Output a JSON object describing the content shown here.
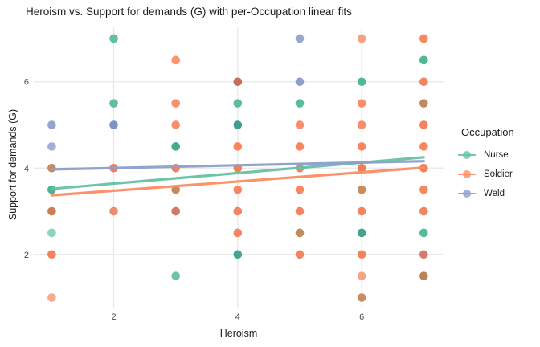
{
  "title": "Heroism vs. Support for demands (G) with per-Occupation linear fits",
  "axes": {
    "x": {
      "label": "Heroism",
      "ticks": [
        "2",
        "4",
        "6"
      ]
    },
    "y": {
      "label": "Support for demands (G)",
      "ticks": [
        "2",
        "4",
        "6"
      ]
    }
  },
  "legend": {
    "title": "Occupation",
    "items": [
      {
        "label": "Nurse",
        "color": "#66C2A5"
      },
      {
        "label": "Soldier",
        "color": "#FC8D62"
      },
      {
        "label": "Weld",
        "color": "#8DA0CB"
      }
    ]
  },
  "colors": {
    "background": "#ffffff",
    "grid": "#e8e8e8",
    "tick_label": "#4d4d4d",
    "text": "#1a1a1a"
  },
  "chart_data": {
    "type": "scatter",
    "title": "Heroism vs. Support for demands (G) with per-Occupation linear fits",
    "xlabel": "Heroism",
    "ylabel": "Support for demands (G)",
    "xlim": [
      0.71,
      7.32
    ],
    "ylim": [
      0.75,
      7.26
    ],
    "x_ticks": [
      2,
      4,
      6
    ],
    "y_ticks": [
      2,
      4,
      6
    ],
    "grid": "major only, light gray on white",
    "legend_position": "right",
    "color_legend": "green hues = Nurse, orange/salmon hues = Soldier, blue hues = Weld; brown/teal/dark-red dots are alpha-blended overlaps of multiple occupations at the same (x,y)",
    "points": [
      {
        "x": 1,
        "y": 5,
        "color": "#94a5cf"
      },
      {
        "x": 1,
        "y": 4.5,
        "color": "#a3b0d6"
      },
      {
        "x": 1,
        "y": 4,
        "color": "#c98a5e"
      },
      {
        "x": 1,
        "y": 3.5,
        "color": "#4fb392"
      },
      {
        "x": 1,
        "y": 3,
        "color": "#c98057"
      },
      {
        "x": 1,
        "y": 2.5,
        "color": "#8fd3b8"
      },
      {
        "x": 1,
        "y": 2,
        "color": "#f4805d"
      },
      {
        "x": 1,
        "y": 1,
        "color": "#f9a98c"
      },
      {
        "x": 2,
        "y": 7,
        "color": "#62c09e"
      },
      {
        "x": 2,
        "y": 5.5,
        "color": "#62be9d"
      },
      {
        "x": 2,
        "y": 5,
        "color": "#7d93c4"
      },
      {
        "x": 2,
        "y": 4,
        "color": "#f0805b"
      },
      {
        "x": 2,
        "y": 3,
        "color": "#e98f70"
      },
      {
        "x": 3,
        "y": 6.5,
        "color": "#fb9471"
      },
      {
        "x": 3,
        "y": 5.5,
        "color": "#fa8f6d"
      },
      {
        "x": 3,
        "y": 5,
        "color": "#f98e6c"
      },
      {
        "x": 3,
        "y": 4.5,
        "color": "#49a88e"
      },
      {
        "x": 3,
        "y": 4,
        "color": "#f2835e"
      },
      {
        "x": 3,
        "y": 3.5,
        "color": "#c08a5e"
      },
      {
        "x": 3,
        "y": 3,
        "color": "#d47767"
      },
      {
        "x": 3,
        "y": 1.5,
        "color": "#6cc4a3"
      },
      {
        "x": 4,
        "y": 6,
        "color": "#c96a5c"
      },
      {
        "x": 4,
        "y": 5.5,
        "color": "#5ebd9c"
      },
      {
        "x": 4,
        "y": 5,
        "color": "#3f9e8b"
      },
      {
        "x": 4,
        "y": 4.5,
        "color": "#f8875f"
      },
      {
        "x": 4,
        "y": 4,
        "color": "#f07f52"
      },
      {
        "x": 4,
        "y": 3.5,
        "color": "#f8875f"
      },
      {
        "x": 4,
        "y": 3,
        "color": "#f28560"
      },
      {
        "x": 4,
        "y": 2.5,
        "color": "#f38562"
      },
      {
        "x": 4,
        "y": 2,
        "color": "#44a491"
      },
      {
        "x": 5,
        "y": 7,
        "color": "#97a7d0"
      },
      {
        "x": 5,
        "y": 6,
        "color": "#8ca0cb"
      },
      {
        "x": 5,
        "y": 5.5,
        "color": "#5abd9a"
      },
      {
        "x": 5,
        "y": 5,
        "color": "#fa8e6c"
      },
      {
        "x": 5,
        "y": 4.5,
        "color": "#f8875f"
      },
      {
        "x": 5,
        "y": 4,
        "color": "#f4805c"
      },
      {
        "x": 5,
        "y": 3.5,
        "color": "#f8875f"
      },
      {
        "x": 5,
        "y": 3,
        "color": "#f28560"
      },
      {
        "x": 5,
        "y": 2.5,
        "color": "#c28a5d"
      },
      {
        "x": 5,
        "y": 2,
        "color": "#f4835f"
      },
      {
        "x": 6,
        "y": 7,
        "color": "#fa9f80"
      },
      {
        "x": 6,
        "y": 6,
        "color": "#52b795"
      },
      {
        "x": 6,
        "y": 5.5,
        "color": "#f98e6c"
      },
      {
        "x": 6,
        "y": 5,
        "color": "#f98e6c"
      },
      {
        "x": 6,
        "y": 4.5,
        "color": "#f8875f"
      },
      {
        "x": 6,
        "y": 4,
        "color": "#f07e57"
      },
      {
        "x": 6,
        "y": 3.5,
        "color": "#c68c5c"
      },
      {
        "x": 6,
        "y": 3,
        "color": "#f28560"
      },
      {
        "x": 6,
        "y": 2.5,
        "color": "#43a390"
      },
      {
        "x": 6,
        "y": 2,
        "color": "#f4835f"
      },
      {
        "x": 6,
        "y": 1.5,
        "color": "#f9a386"
      },
      {
        "x": 6,
        "y": 1,
        "color": "#ce8a60"
      },
      {
        "x": 7,
        "y": 7,
        "color": "#f68963"
      },
      {
        "x": 7,
        "y": 6.5,
        "color": "#4fb795"
      },
      {
        "x": 7,
        "y": 6,
        "color": "#f2845f"
      },
      {
        "x": 7,
        "y": 5.5,
        "color": "#bf8a5f"
      },
      {
        "x": 7,
        "y": 5,
        "color": "#f2835e"
      },
      {
        "x": 7,
        "y": 4.5,
        "color": "#f8875f"
      },
      {
        "x": 7,
        "y": 4,
        "color": "#f27f55"
      },
      {
        "x": 7,
        "y": 3.5,
        "color": "#f8875f"
      },
      {
        "x": 7,
        "y": 3,
        "color": "#f28560"
      },
      {
        "x": 7,
        "y": 2.5,
        "color": "#55bb98"
      },
      {
        "x": 7,
        "y": 2,
        "color": "#d87a6a"
      },
      {
        "x": 7,
        "y": 1.5,
        "color": "#bc8456"
      }
    ],
    "fit_lines": [
      {
        "occupation": "Nurse",
        "color": "#66C2A5",
        "x_start": 1,
        "y_start": 3.52,
        "x_end": 7,
        "y_end": 4.25
      },
      {
        "occupation": "Soldier",
        "color": "#FC8D62",
        "x_start": 1,
        "y_start": 3.37,
        "x_end": 7,
        "y_end": 4.01
      },
      {
        "occupation": "Weld",
        "color": "#8DA0CB",
        "x_start": 1,
        "y_start": 3.97,
        "x_end": 7,
        "y_end": 4.16
      }
    ]
  }
}
